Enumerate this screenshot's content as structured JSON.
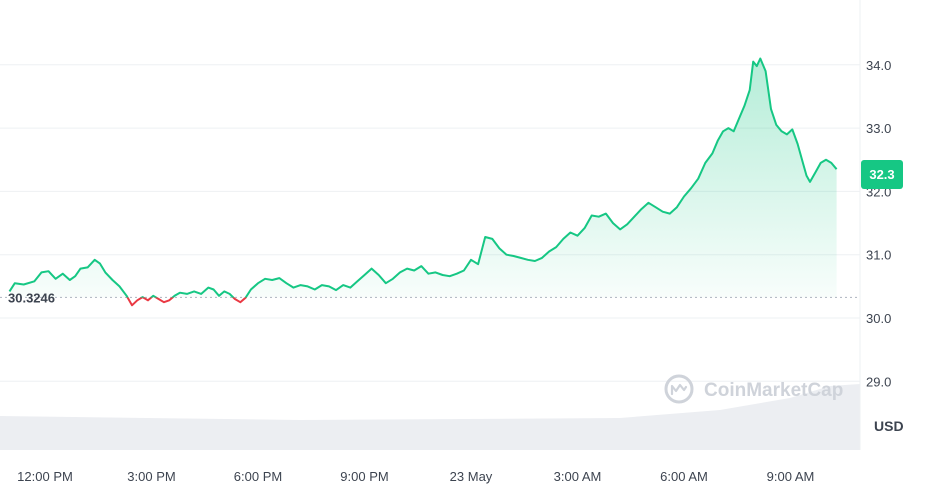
{
  "chart_data": {
    "type": "area",
    "currency_label": "USD",
    "watermark": "CoinMarketCap",
    "reference_price": "30.3246",
    "last_price_label": "32.3",
    "colors": {
      "up": "#16c784",
      "down": "#ea3943",
      "fill_top": "#16c784",
      "badge": "#16c784",
      "grid": "#eef0f3",
      "volume": "#eceef2",
      "tick_text": "#3d4450"
    },
    "grid": true,
    "y_ticks": [
      "29.0",
      "30.0",
      "31.0",
      "32.0",
      "33.0",
      "34.0"
    ],
    "ylim": [
      28.0,
      35.0
    ],
    "x_ticks": [
      "12:00 PM",
      "3:00 PM",
      "6:00 PM",
      "9:00 PM",
      "23 May",
      "3:00 AM",
      "6:00 AM",
      "9:00 AM"
    ],
    "x_tick_hours": [
      0,
      3,
      6,
      9,
      12,
      15,
      18,
      21
    ],
    "xlim_hours": [
      -1.0,
      23.2
    ],
    "series": [
      {
        "points": [
          [
            -1.0,
            30.42
          ],
          [
            -0.85,
            30.55
          ],
          [
            -0.6,
            30.53
          ],
          [
            -0.3,
            30.58
          ],
          [
            -0.1,
            30.72
          ],
          [
            0.1,
            30.74
          ],
          [
            0.3,
            30.62
          ],
          [
            0.5,
            30.7
          ],
          [
            0.7,
            30.6
          ],
          [
            0.85,
            30.66
          ],
          [
            1.0,
            30.78
          ],
          [
            1.2,
            30.8
          ],
          [
            1.4,
            30.92
          ],
          [
            1.55,
            30.86
          ],
          [
            1.7,
            30.72
          ],
          [
            1.9,
            30.6
          ],
          [
            2.1,
            30.5
          ],
          [
            2.3,
            30.35
          ],
          [
            2.45,
            30.2
          ],
          [
            2.6,
            30.28
          ],
          [
            2.75,
            30.33
          ],
          [
            2.9,
            30.28
          ],
          [
            3.05,
            30.35
          ],
          [
            3.2,
            30.3
          ],
          [
            3.35,
            30.25
          ],
          [
            3.5,
            30.28
          ],
          [
            3.65,
            30.35
          ],
          [
            3.8,
            30.4
          ],
          [
            4.0,
            30.38
          ],
          [
            4.2,
            30.42
          ],
          [
            4.4,
            30.38
          ],
          [
            4.6,
            30.48
          ],
          [
            4.75,
            30.45
          ],
          [
            4.9,
            30.35
          ],
          [
            5.05,
            30.42
          ],
          [
            5.2,
            30.38
          ],
          [
            5.35,
            30.3
          ],
          [
            5.5,
            30.25
          ],
          [
            5.65,
            30.32
          ],
          [
            5.8,
            30.45
          ],
          [
            6.0,
            30.55
          ],
          [
            6.2,
            30.62
          ],
          [
            6.4,
            30.6
          ],
          [
            6.6,
            30.63
          ],
          [
            6.8,
            30.55
          ],
          [
            7.0,
            30.48
          ],
          [
            7.2,
            30.52
          ],
          [
            7.4,
            30.5
          ],
          [
            7.6,
            30.45
          ],
          [
            7.8,
            30.52
          ],
          [
            8.0,
            30.5
          ],
          [
            8.2,
            30.44
          ],
          [
            8.4,
            30.52
          ],
          [
            8.6,
            30.48
          ],
          [
            8.8,
            30.58
          ],
          [
            9.0,
            30.68
          ],
          [
            9.2,
            30.78
          ],
          [
            9.4,
            30.68
          ],
          [
            9.6,
            30.55
          ],
          [
            9.8,
            30.62
          ],
          [
            10.0,
            30.72
          ],
          [
            10.2,
            30.78
          ],
          [
            10.4,
            30.75
          ],
          [
            10.6,
            30.82
          ],
          [
            10.8,
            30.7
          ],
          [
            11.0,
            30.72
          ],
          [
            11.2,
            30.68
          ],
          [
            11.4,
            30.66
          ],
          [
            11.6,
            30.7
          ],
          [
            11.8,
            30.75
          ],
          [
            12.0,
            30.92
          ],
          [
            12.2,
            30.85
          ],
          [
            12.4,
            31.28
          ],
          [
            12.6,
            31.25
          ],
          [
            12.8,
            31.1
          ],
          [
            13.0,
            31.0
          ],
          [
            13.2,
            30.98
          ],
          [
            13.4,
            30.95
          ],
          [
            13.6,
            30.92
          ],
          [
            13.8,
            30.9
          ],
          [
            14.0,
            30.95
          ],
          [
            14.2,
            31.05
          ],
          [
            14.4,
            31.12
          ],
          [
            14.6,
            31.25
          ],
          [
            14.8,
            31.35
          ],
          [
            15.0,
            31.3
          ],
          [
            15.2,
            31.42
          ],
          [
            15.4,
            31.62
          ],
          [
            15.6,
            31.6
          ],
          [
            15.8,
            31.65
          ],
          [
            16.0,
            31.5
          ],
          [
            16.2,
            31.4
          ],
          [
            16.4,
            31.48
          ],
          [
            16.6,
            31.6
          ],
          [
            16.8,
            31.72
          ],
          [
            17.0,
            31.82
          ],
          [
            17.2,
            31.75
          ],
          [
            17.4,
            31.68
          ],
          [
            17.6,
            31.65
          ],
          [
            17.8,
            31.75
          ],
          [
            18.0,
            31.92
          ],
          [
            18.2,
            32.05
          ],
          [
            18.4,
            32.2
          ],
          [
            18.6,
            32.45
          ],
          [
            18.8,
            32.6
          ],
          [
            18.95,
            32.8
          ],
          [
            19.1,
            32.95
          ],
          [
            19.25,
            33.0
          ],
          [
            19.4,
            32.95
          ],
          [
            19.55,
            33.15
          ],
          [
            19.7,
            33.35
          ],
          [
            19.85,
            33.6
          ],
          [
            19.95,
            34.05
          ],
          [
            20.05,
            33.98
          ],
          [
            20.15,
            34.1
          ],
          [
            20.3,
            33.9
          ],
          [
            20.45,
            33.3
          ],
          [
            20.6,
            33.05
          ],
          [
            20.75,
            32.95
          ],
          [
            20.9,
            32.9
          ],
          [
            21.05,
            32.98
          ],
          [
            21.2,
            32.75
          ],
          [
            21.35,
            32.45
          ],
          [
            21.45,
            32.25
          ],
          [
            21.55,
            32.15
          ],
          [
            21.7,
            32.3
          ],
          [
            21.85,
            32.45
          ],
          [
            22.0,
            32.5
          ],
          [
            22.15,
            32.45
          ],
          [
            22.3,
            32.35
          ]
        ]
      }
    ]
  }
}
